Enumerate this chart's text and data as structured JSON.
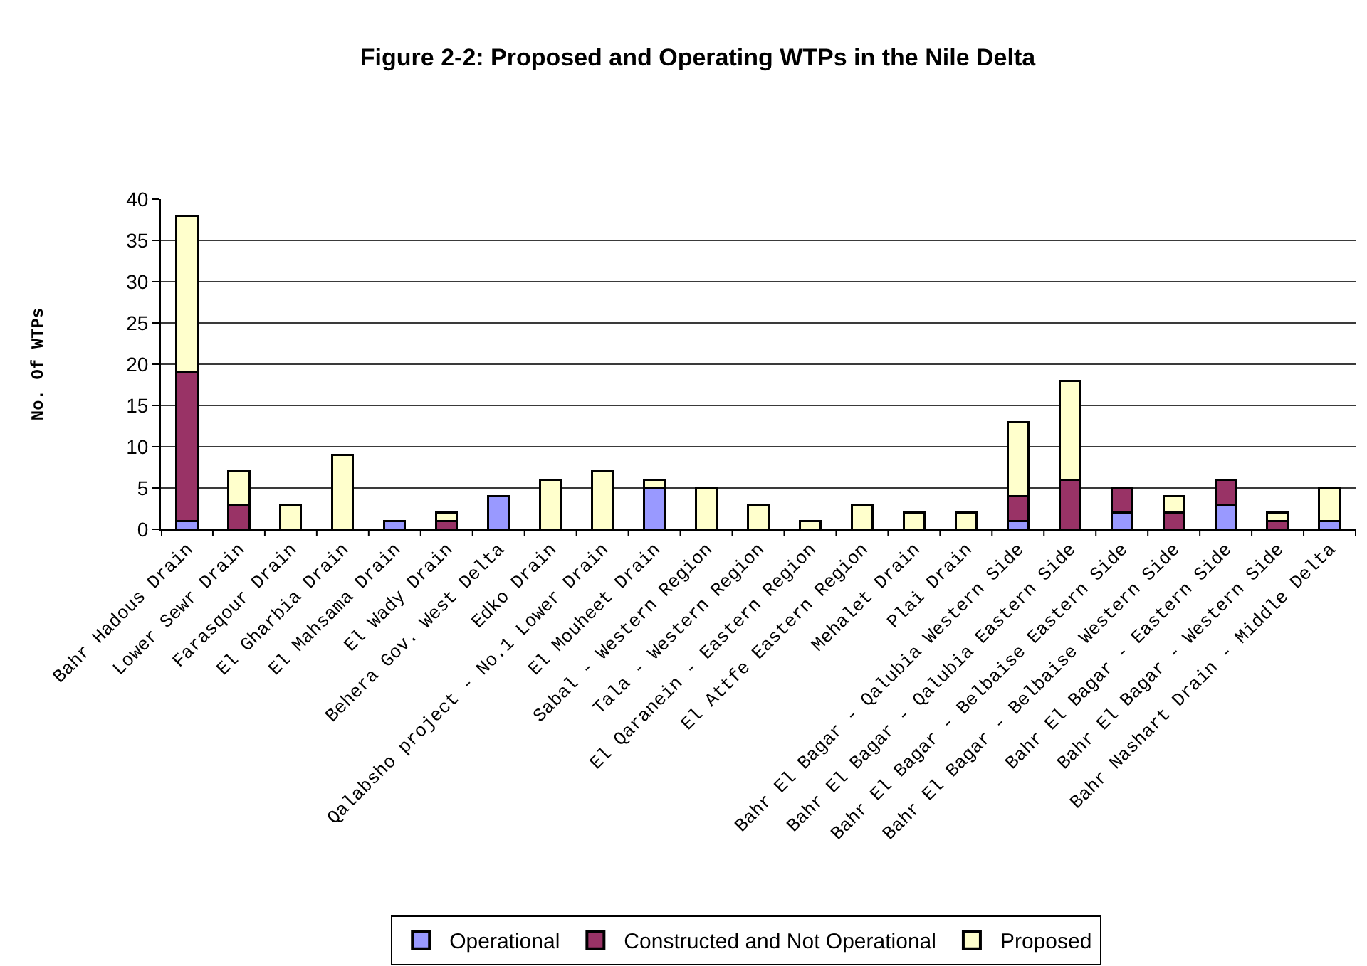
{
  "chart_data": {
    "type": "bar",
    "title": "Figure 2-2: Proposed and Operating WTPs in the Nile Delta",
    "ylabel": "No. Of WTPs",
    "categories": [
      "Bahr Hadous Drain",
      "Lower Sewr Drain",
      "Farasqour Drain",
      "El Gharbia Drain",
      "El Mahsama Drain",
      "El Wady Drain",
      "Behera Gov. West Delta",
      "Edko Drain",
      "Qalabsho project - No.1 Lower Drain",
      "El Mouheet Drain",
      "Sabal - Western Region",
      "Tala - Western Region",
      "El Qaranein - Eastern Region",
      "El Attfe Eastern Region",
      "Mehalet Drain",
      "Plai Drain",
      "Bahr El Bagar - Qalubia Western Side",
      "Bahr El Bagar - Qalubia Eastern Side",
      "Bahr El Bagar - Belbaise Eastern Side",
      "Bahr El Bagar - Belbaise Western Side",
      "Bahr El Bagar - Eastern Side",
      "Bahr El Bagar - Western Side",
      "Bahr Nashart Drain - Middle Delta"
    ],
    "stacked": true,
    "series": [
      {
        "name": "Operational",
        "color": "#9999ff",
        "values": [
          1,
          0,
          0,
          0,
          1,
          0,
          4,
          0,
          0,
          5,
          0,
          0,
          0,
          0,
          0,
          0,
          1,
          0,
          2,
          0,
          3,
          0,
          1
        ]
      },
      {
        "name": "Constructed and Not Operational",
        "color": "#993366",
        "values": [
          18,
          3,
          0,
          0,
          0,
          1,
          0,
          0,
          0,
          0,
          0,
          0,
          0,
          0,
          0,
          0,
          3,
          6,
          3,
          2,
          3,
          1,
          0
        ]
      },
      {
        "name": "Proposed",
        "color": "#ffffcc",
        "values": [
          19,
          4,
          3,
          9,
          0,
          1,
          0,
          6,
          7,
          1,
          5,
          3,
          1,
          3,
          2,
          2,
          9,
          12,
          0,
          2,
          0,
          1,
          4
        ]
      }
    ],
    "ylim": [
      0,
      40
    ],
    "yticks": [
      0,
      5,
      10,
      15,
      20,
      25,
      30,
      35,
      40
    ],
    "grid": "y",
    "legend": "bottom"
  }
}
